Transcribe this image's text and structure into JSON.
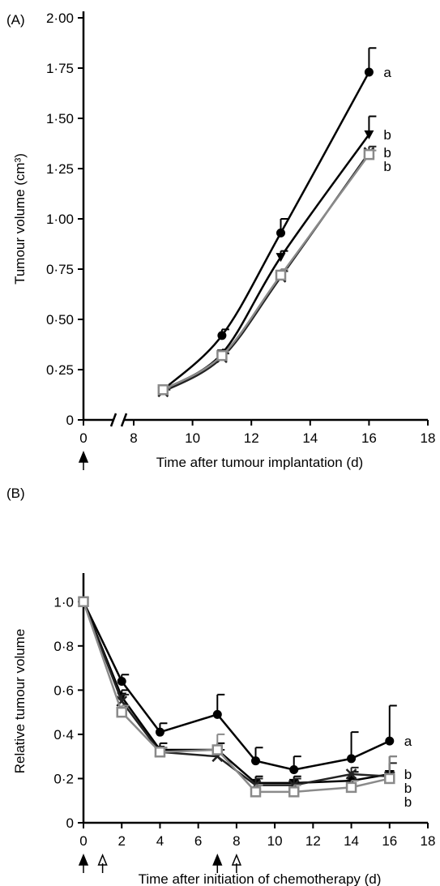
{
  "chart_data": [
    {
      "type": "line",
      "panel_label": "(A)",
      "smooth": true,
      "xlabel": "Time after tumour implantation (d)",
      "ylabel": "Tumour volume (cm³)",
      "x_break": true,
      "xlim": [
        0,
        18
      ],
      "xticks": [
        0,
        8,
        10,
        12,
        14,
        16,
        18
      ],
      "ylim": [
        0,
        2
      ],
      "yticks": [
        0,
        {
          "value": 0.25,
          "label": "0·25"
        },
        {
          "value": 0.5,
          "label": "0·50"
        },
        {
          "value": 0.75,
          "label": "0·75"
        },
        {
          "value": 1,
          "label": "1·00"
        },
        {
          "value": 1.25,
          "label": "1·25"
        },
        {
          "value": 1.5,
          "label": "1·50"
        },
        {
          "value": 1.75,
          "label": "1·75"
        },
        {
          "value": 2,
          "label": "2·00"
        }
      ],
      "x": [
        9,
        11,
        13,
        16
      ],
      "series": [
        {
          "marker": "circle",
          "color": "#000000",
          "values": [
            0.15,
            0.42,
            0.93,
            1.73
          ],
          "errors": [
            0.02,
            0.03,
            0.07,
            0.12
          ],
          "annotation": "a"
        },
        {
          "marker": "triangle",
          "color": "#000000",
          "values": [
            0.15,
            0.33,
            0.81,
            1.42
          ],
          "errors": [
            0.01,
            0.02,
            0.03,
            0.09
          ],
          "annotation": "b"
        },
        {
          "marker": "cross",
          "color": "#222222",
          "values": [
            0.14,
            0.31,
            0.71,
            1.33
          ],
          "errors": [
            0.01,
            0.02,
            0.03,
            0.03
          ],
          "annotation": "b"
        },
        {
          "marker": "square",
          "color": "#8a8a8a",
          "values": [
            0.15,
            0.32,
            0.72,
            1.32
          ],
          "errors": [
            0.01,
            0.02,
            0.03,
            0.02
          ],
          "annotation": "b"
        }
      ],
      "arrows": [
        {
          "x": 0,
          "style": "filled"
        }
      ]
    },
    {
      "type": "line",
      "panel_label": "(B)",
      "smooth": false,
      "xlabel": "Time after initiation of chemotherapy (d)",
      "ylabel": "Relative tumour volume",
      "xlim": [
        0,
        18
      ],
      "xticks": [
        0,
        2,
        4,
        6,
        8,
        10,
        12,
        14,
        16,
        18
      ],
      "ylim": [
        0,
        1.1
      ],
      "yticks": [
        0,
        {
          "value": 0.2,
          "label": "0·2"
        },
        {
          "value": 0.4,
          "label": "0·4"
        },
        {
          "value": 0.6,
          "label": "0·6"
        },
        {
          "value": 0.8,
          "label": "0·8"
        },
        {
          "value": 1,
          "label": "1·0"
        }
      ],
      "x": [
        0,
        2,
        4,
        7,
        9,
        11,
        14,
        16
      ],
      "series": [
        {
          "marker": "circle",
          "color": "#000000",
          "values": [
            1.0,
            0.64,
            0.41,
            0.49,
            0.28,
            0.24,
            0.29,
            0.37
          ],
          "errors": [
            0,
            0.03,
            0.04,
            0.09,
            0.06,
            0.06,
            0.12,
            0.16
          ],
          "annotation": "a"
        },
        {
          "marker": "triangle",
          "color": "#000000",
          "values": [
            1.0,
            0.57,
            0.33,
            0.33,
            0.18,
            0.18,
            0.19,
            0.22
          ],
          "errors": [
            0,
            0.03,
            0.03,
            0.03,
            0.03,
            0.03,
            0.04,
            0.08
          ],
          "annotation": "b"
        },
        {
          "marker": "cross",
          "color": "#222222",
          "values": [
            1.0,
            0.55,
            0.32,
            0.3,
            0.17,
            0.17,
            0.22,
            0.21
          ],
          "errors": [
            0,
            0.03,
            0.02,
            0.03,
            0.03,
            0.03,
            0.03,
            0.06
          ],
          "annotation": "b"
        },
        {
          "marker": "square",
          "color": "#8a8a8a",
          "values": [
            1.0,
            0.5,
            0.32,
            0.33,
            0.14,
            0.14,
            0.16,
            0.2
          ],
          "errors": [
            0,
            0.03,
            0.02,
            0.07,
            0.03,
            0.03,
            0.03,
            0.1
          ],
          "annotation": "b"
        }
      ],
      "arrows": [
        {
          "x": 0,
          "style": "filled"
        },
        {
          "x": 1,
          "style": "open"
        },
        {
          "x": 7,
          "style": "filled"
        },
        {
          "x": 8,
          "style": "open"
        }
      ]
    }
  ]
}
